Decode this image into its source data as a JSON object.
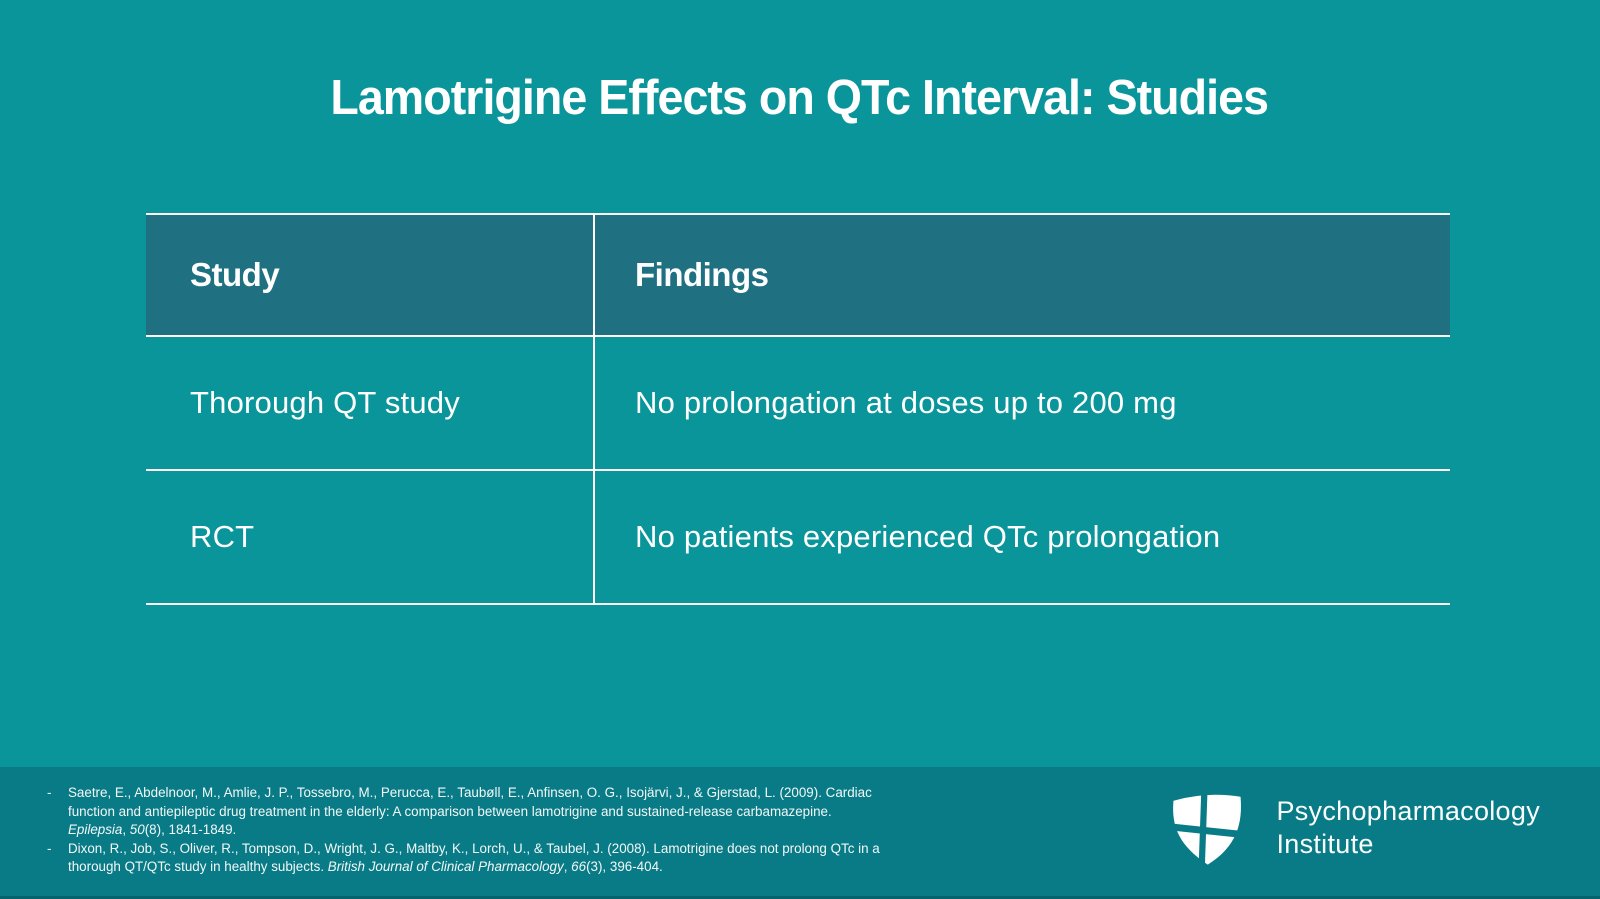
{
  "colors": {
    "page_background": "#0A959B",
    "table_header_background": "#1F7181",
    "footer_background": "#097B86",
    "footer_bottom_strip": "#05636D",
    "border": "#FFFFFF",
    "text": "#FFFFFF"
  },
  "title": "Lamotrigine Effects on QTc Interval: Studies",
  "table": {
    "headers": [
      "Study",
      "Findings"
    ],
    "rows": [
      [
        "Thorough QT study",
        "No prolongation at doses up to 200 mg"
      ],
      [
        "RCT",
        "No patients experienced QTc prolongation"
      ]
    ]
  },
  "footer": {
    "bullet": "-",
    "references": [
      {
        "segments": [
          {
            "t": "Saetre, E., Abdelnoor, M., Amlie, J. P., Tossebro, M., Perucca, E., Taubøll, E., Anfinsen, O. G., Isojärvi, J., & Gjerstad, L. (2009). Cardiac function and antiepileptic drug treatment in the elderly: A comparison between lamotrigine and sustained-release carbamazepine. "
          },
          {
            "t": "Epilepsia",
            "i": true
          },
          {
            "t": ", "
          },
          {
            "t": "50",
            "i": true
          },
          {
            "t": "(8), 1841-1849."
          }
        ]
      },
      {
        "segments": [
          {
            "t": "Dixon, R., Job, S., Oliver, R., Tompson, D., Wright, J. G., Maltby, K., Lorch, U., & Taubel, J. (2008). Lamotrigine does not prolong QTc in a thorough QT/QTc study in healthy subjects. "
          },
          {
            "t": "British Journal of Clinical Pharmacology",
            "i": true
          },
          {
            "t": ", "
          },
          {
            "t": "66",
            "i": true
          },
          {
            "t": "(3), 396-404."
          }
        ]
      }
    ],
    "logo": {
      "line1": "Psychopharmacology",
      "line2": "Institute"
    }
  }
}
